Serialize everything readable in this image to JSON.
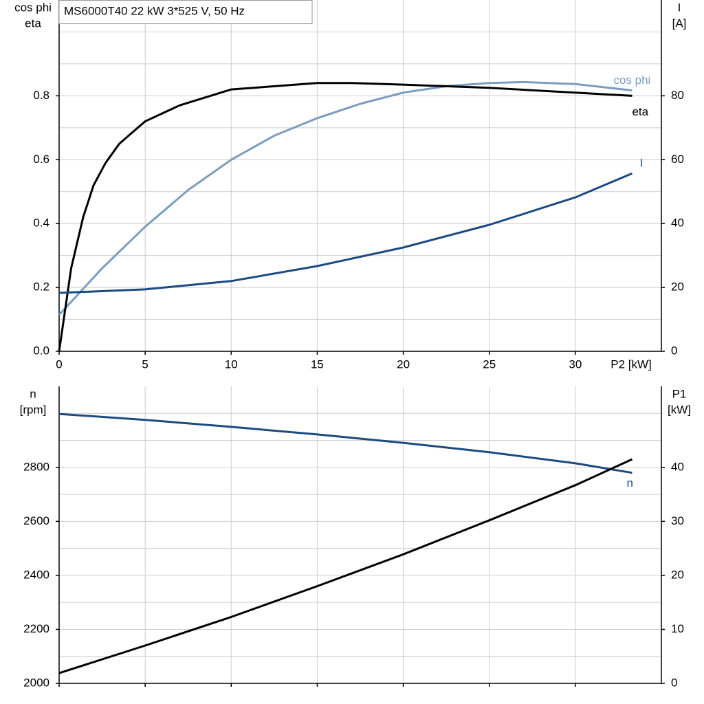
{
  "chart_data": [
    {
      "type": "line",
      "title": "MS6000T40   22 kW   3*525 V, 50 Hz",
      "xlabel": "P2 [kW]",
      "ylabel": [
        "cos phi",
        "eta"
      ],
      "y2label": [
        "I",
        "[A]"
      ],
      "xlim": [
        0,
        35
      ],
      "xticks": [
        0,
        5,
        10,
        15,
        20,
        25,
        30
      ],
      "ylim": [
        0,
        1.1
      ],
      "yticks": [
        {
          "value": 0,
          "label": "0.0"
        },
        0.2,
        0.4,
        0.6,
        0.8
      ],
      "minor_yticks": [
        0.1,
        0.3,
        0.5,
        0.7,
        0.9,
        1.0
      ],
      "y2lim": [
        0,
        110
      ],
      "y2ticks": [
        0,
        20,
        40,
        60,
        80
      ],
      "grid": true,
      "series": [
        {
          "name": "cos phi",
          "color": "#7a9cbf",
          "x": [
            0,
            2.5,
            5,
            7.5,
            10,
            12.5,
            15,
            17.5,
            20,
            22.5,
            25,
            27,
            30,
            33.3
          ],
          "values": [
            0.114,
            0.26,
            0.39,
            0.505,
            0.6,
            0.675,
            0.73,
            0.775,
            0.81,
            0.83,
            0.84,
            0.843,
            0.837,
            0.817
          ]
        },
        {
          "name": "eta",
          "color": "#000000",
          "x": [
            0,
            0.7,
            1.4,
            2,
            2.7,
            3.5,
            5,
            7,
            10,
            15,
            17,
            20,
            25,
            30,
            33.3
          ],
          "values": [
            0,
            0.26,
            0.42,
            0.52,
            0.59,
            0.65,
            0.72,
            0.77,
            0.82,
            0.84,
            0.84,
            0.835,
            0.825,
            0.81,
            0.8
          ]
        },
        {
          "name": "I",
          "color": "#1a4a80",
          "axis": "y2",
          "x": [
            0,
            5,
            10,
            15,
            20,
            25,
            30,
            33.3
          ],
          "values": [
            18.3,
            19.4,
            22,
            26.7,
            32.5,
            39.6,
            48.2,
            55.7
          ]
        }
      ]
    },
    {
      "type": "line",
      "ylabel": [
        "n",
        "[rpm]"
      ],
      "y2label": [
        "P1",
        "[kW]"
      ],
      "xlim": [
        0,
        35
      ],
      "xticks": [
        0,
        5,
        10,
        15,
        20,
        25,
        30
      ],
      "ylim": [
        2000,
        3100
      ],
      "yticks": [
        2000,
        2200,
        2400,
        2600,
        2800
      ],
      "minor_yticks": [
        2100,
        2300,
        2500,
        2700,
        2900,
        3000
      ],
      "y2lim": [
        0,
        55
      ],
      "y2ticks": [
        0,
        10,
        20,
        30,
        40
      ],
      "grid": true,
      "series": [
        {
          "name": "n",
          "color": "#1a4a80",
          "x": [
            0,
            5,
            10,
            15,
            20,
            25,
            30,
            33.3
          ],
          "values": [
            2998,
            2976,
            2950,
            2922,
            2891,
            2856,
            2815,
            2780
          ]
        },
        {
          "color": "#000000",
          "axis": "y2",
          "x": [
            0,
            5,
            10,
            15,
            20,
            25,
            30,
            33.3
          ],
          "values": [
            1.9,
            7,
            12.3,
            18,
            23.9,
            30.2,
            36.7,
            41.5
          ]
        }
      ]
    }
  ]
}
